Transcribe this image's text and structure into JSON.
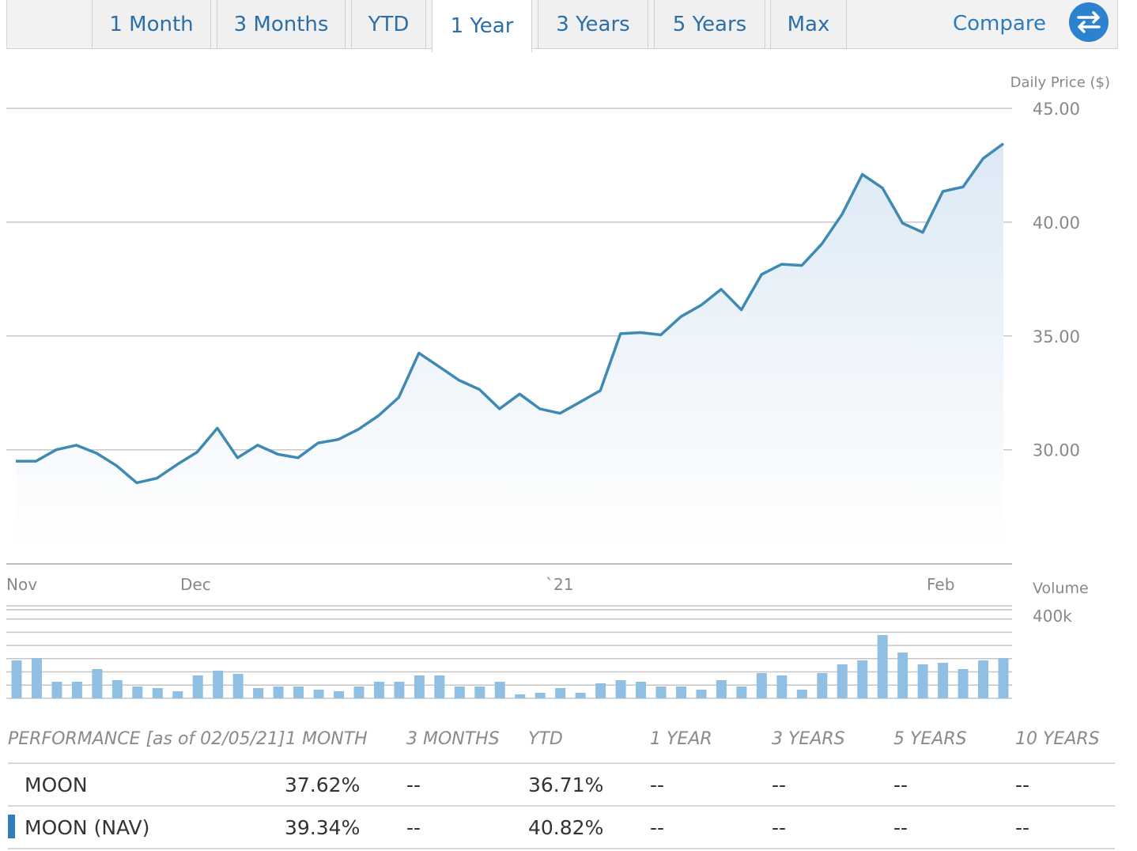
{
  "tabs": [
    "1 Month",
    "3 Months",
    "YTD",
    "1 Year",
    "3 Years",
    "5 Years",
    "Max"
  ],
  "active_tab": "1 Year",
  "compare_label": "Compare",
  "colors": {
    "line": "#3e8ab3",
    "volume": "#8fc0e4",
    "accent": "#2d82d0"
  },
  "chart_data": {
    "type": "line",
    "y_label": "Daily Price ($)",
    "y_ticks": [
      "45.00",
      "40.00",
      "35.00",
      "30.00"
    ],
    "ylim": [
      25.75,
      45.0
    ],
    "x_labels": [
      "Nov",
      "Dec",
      "`21",
      "Feb"
    ],
    "price_values": [
      29.5,
      29.5,
      30.0,
      30.2,
      29.85,
      29.3,
      28.55,
      28.75,
      29.35,
      29.9,
      30.95,
      29.65,
      30.2,
      29.8,
      29.65,
      30.3,
      30.45,
      30.9,
      31.5,
      32.3,
      34.25,
      33.65,
      33.05,
      32.65,
      31.8,
      32.45,
      31.8,
      31.6,
      32.1,
      32.6,
      35.1,
      35.15,
      35.05,
      35.85,
      36.35,
      37.05,
      36.15,
      37.7,
      38.15,
      38.1,
      39.05,
      40.35,
      42.1,
      41.5,
      39.95,
      39.55,
      41.35,
      41.55,
      42.8,
      43.45
    ],
    "volume_label": "Volume",
    "volume_tick": "400k",
    "volume_values": [
      240,
      255,
      105,
      105,
      185,
      115,
      75,
      65,
      45,
      145,
      175,
      155,
      65,
      75,
      75,
      55,
      45,
      75,
      105,
      105,
      145,
      145,
      75,
      75,
      105,
      25,
      35,
      65,
      35,
      95,
      115,
      105,
      75,
      75,
      55,
      115,
      75,
      160,
      145,
      55,
      160,
      215,
      240,
      400,
      290,
      215,
      225,
      185,
      240,
      255
    ],
    "volume_ylim": [
      0,
      400
    ]
  },
  "performance": {
    "title": "PERFORMANCE [as of 02/05/21]",
    "columns": [
      "1 MONTH",
      "3 MONTHS",
      "YTD",
      "1 YEAR",
      "3 YEARS",
      "5 YEARS",
      "10 YEARS"
    ],
    "rows": [
      {
        "name": "MOON",
        "values": [
          "37.62%",
          "--",
          "36.71%",
          "--",
          "--",
          "--",
          "--"
        ]
      },
      {
        "name": "MOON (NAV)",
        "values": [
          "39.34%",
          "--",
          "40.82%",
          "--",
          "--",
          "--",
          "--"
        ]
      }
    ]
  }
}
